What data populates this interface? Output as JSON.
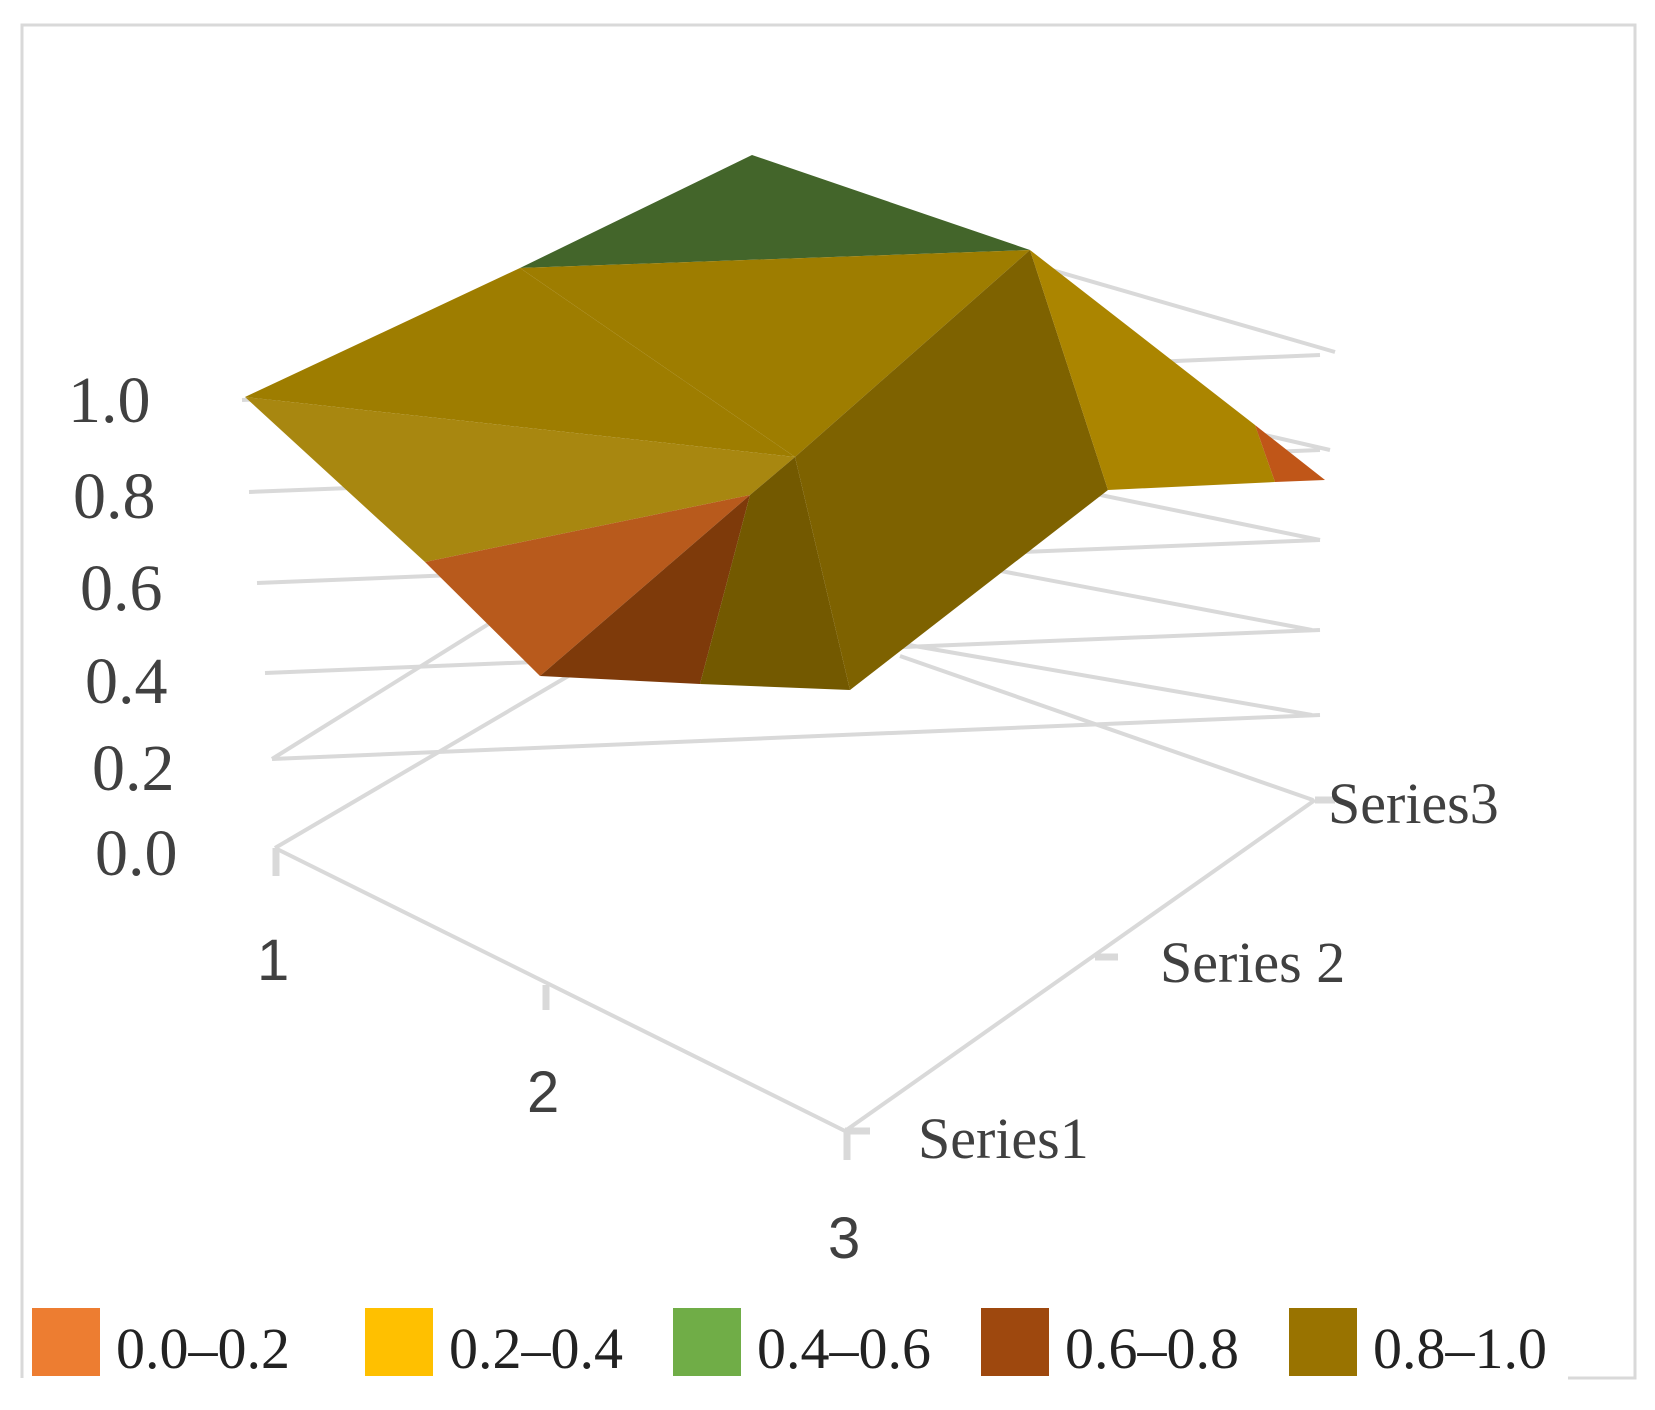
{
  "chart_data": {
    "type": "surface",
    "x": [
      "1",
      "2",
      "3"
    ],
    "series": [
      {
        "name": "Series1",
        "values": [
          0.4,
          0.4,
          0.4
        ]
      },
      {
        "name": "Series 2",
        "values": [
          0.9,
          0.8,
          0.85
        ]
      },
      {
        "name": "Series3",
        "values": [
          0.95,
          0.85,
          0.65
        ]
      }
    ],
    "z_ticks": [
      "0.0",
      "0.2",
      "0.4",
      "0.6",
      "0.8",
      "1.0"
    ],
    "x_ticks": [
      "1",
      "2",
      "3"
    ],
    "series_ticks": [
      "Series1",
      "Series 2",
      "Series3"
    ],
    "zlim": [
      0,
      1.0
    ],
    "legend_position": "bottom",
    "legend": [
      {
        "label": "0.0–0.2",
        "color": "#ED7D31"
      },
      {
        "label": "0.2–0.4",
        "color": "#FFC000"
      },
      {
        "label": "0.4–0.6",
        "color": "#70AD47"
      },
      {
        "label": "0.6–0.8",
        "color": "#9E480E"
      },
      {
        "label": "0.8–1.0",
        "color": "#997300"
      }
    ],
    "surface_colors": {
      "green": "#43652A",
      "olive": "#9E7D00",
      "olive_light": "#A88710",
      "olive_dark": "#7E6200",
      "olive_shadow": "#735900",
      "orange": "#B85A1C",
      "orange_right": "#C05618",
      "brown": "#7E3A0A",
      "gold_right": "#AB8500"
    }
  }
}
